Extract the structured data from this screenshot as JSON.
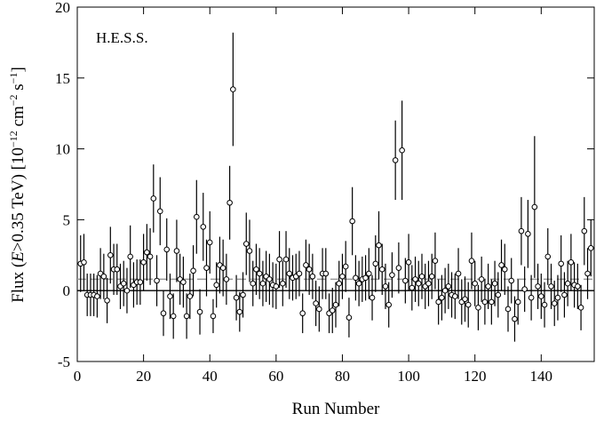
{
  "chart_data": {
    "type": "scatter",
    "annotation": "H.E.S.S.",
    "xlabel": "Run Number",
    "ylabel": [
      "Flux (",
      "E",
      ">0.35 TeV) [10",
      "−12",
      " cm",
      "−2",
      " s",
      "−1",
      "]"
    ],
    "xlim": [
      0,
      156
    ],
    "ylim": [
      -5,
      20
    ],
    "xticks": [
      0,
      20,
      40,
      60,
      80,
      100,
      120,
      140
    ],
    "yticks": [
      -5,
      0,
      5,
      10,
      15,
      20
    ],
    "zero_line": 0,
    "mean_line": 0.8,
    "color": "#000000",
    "x": [
      1,
      2,
      3,
      4,
      5,
      6,
      7,
      8,
      9,
      10,
      11,
      12,
      13,
      14,
      15,
      16,
      17,
      18,
      19,
      20,
      21,
      22,
      23,
      24,
      25,
      26,
      27,
      28,
      29,
      30,
      31,
      32,
      33,
      34,
      35,
      36,
      37,
      38,
      39,
      40,
      41,
      42,
      43,
      44,
      45,
      46,
      47,
      48,
      49,
      50,
      51,
      52,
      53,
      54,
      55,
      56,
      57,
      58,
      59,
      60,
      61,
      62,
      63,
      64,
      65,
      66,
      67,
      68,
      69,
      70,
      71,
      72,
      73,
      74,
      75,
      76,
      77,
      78,
      79,
      80,
      81,
      82,
      83,
      84,
      85,
      86,
      87,
      88,
      89,
      90,
      91,
      92,
      93,
      94,
      95,
      96,
      97,
      98,
      99,
      100,
      101,
      102,
      103,
      104,
      105,
      106,
      107,
      108,
      109,
      110,
      111,
      112,
      113,
      114,
      115,
      116,
      117,
      118,
      119,
      120,
      121,
      122,
      123,
      124,
      125,
      126,
      127,
      128,
      129,
      130,
      131,
      132,
      133,
      134,
      135,
      136,
      137,
      138,
      139,
      140,
      141,
      142,
      143,
      144,
      145,
      146,
      147,
      148,
      149,
      150,
      151,
      152,
      153,
      154,
      155
    ],
    "values": [
      1.9,
      2.0,
      -0.3,
      -0.3,
      -0.3,
      -0.4,
      1.2,
      1.0,
      -0.7,
      2.5,
      1.5,
      1.5,
      0.3,
      0.5,
      0.0,
      2.4,
      0.4,
      0.6,
      0.6,
      2.0,
      2.7,
      2.4,
      6.5,
      0.7,
      5.6,
      -1.6,
      2.9,
      -0.4,
      -1.8,
      2.8,
      0.8,
      0.6,
      -1.8,
      -0.4,
      1.4,
      5.2,
      -1.5,
      4.5,
      1.6,
      3.4,
      -1.8,
      0.4,
      1.8,
      1.6,
      0.8,
      6.2,
      14.2,
      -0.5,
      -1.5,
      -0.3,
      3.3,
      2.8,
      0.5,
      1.5,
      1.2,
      0.5,
      1.0,
      0.8,
      0.4,
      0.3,
      2.2,
      0.5,
      2.2,
      1.2,
      0.9,
      1.0,
      1.2,
      -1.6,
      1.8,
      1.5,
      1.0,
      -0.9,
      -1.3,
      1.2,
      1.2,
      -1.6,
      -1.4,
      -1.0,
      0.5,
      1.0,
      1.7,
      -1.9,
      4.9,
      0.9,
      0.5,
      0.8,
      0.9,
      1.2,
      -0.5,
      1.9,
      3.2,
      1.5,
      0.3,
      -1.0,
      1.1,
      9.2,
      1.6,
      9.9,
      0.7,
      2.0,
      0.2,
      0.8,
      0.5,
      1.0,
      0.3,
      0.5,
      1.0,
      2.1,
      -0.8,
      -0.5,
      0.0,
      0.3,
      -0.3,
      -0.4,
      1.2,
      -0.8,
      -0.6,
      -1.0,
      2.1,
      0.5,
      -1.2,
      0.8,
      -0.8,
      0.3,
      -0.8,
      0.5,
      -0.3,
      1.8,
      1.5,
      -1.3,
      0.7,
      -2.0,
      -0.8,
      4.2,
      0.1,
      4.0,
      -0.5,
      5.9,
      0.3,
      -0.4,
      -1.0,
      2.4,
      0.3,
      -0.9,
      -0.5,
      1.9,
      -0.3,
      0.5,
      2.0,
      0.4,
      0.3,
      -1.2,
      4.2,
      1.2,
      3.0
    ],
    "errors": [
      2.0,
      2.0,
      1.5,
      1.5,
      1.5,
      1.5,
      1.8,
      1.6,
      1.6,
      2.0,
      1.8,
      1.8,
      1.6,
      1.6,
      1.6,
      2.2,
      1.6,
      1.6,
      1.6,
      2.0,
      2.0,
      2.0,
      2.4,
      1.8,
      2.4,
      1.6,
      2.2,
      1.6,
      1.6,
      2.2,
      1.8,
      1.8,
      1.6,
      1.6,
      1.8,
      2.6,
      1.6,
      2.4,
      2.0,
      2.2,
      1.2,
      1.6,
      2.0,
      2.0,
      1.8,
      2.6,
      4.0,
      1.6,
      1.4,
      1.6,
      2.2,
      2.2,
      1.6,
      1.8,
      1.8,
      1.6,
      1.8,
      1.8,
      1.6,
      1.6,
      2.0,
      1.6,
      2.0,
      1.8,
      1.6,
      1.6,
      1.6,
      1.4,
      1.8,
      1.8,
      1.6,
      1.6,
      1.6,
      1.8,
      1.8,
      1.4,
      1.6,
      1.6,
      1.6,
      1.6,
      1.8,
      1.4,
      2.4,
      1.6,
      1.6,
      1.6,
      1.6,
      1.8,
      1.6,
      2.0,
      2.4,
      1.8,
      1.6,
      1.6,
      1.6,
      2.8,
      1.8,
      3.5,
      1.6,
      2.0,
      1.6,
      1.6,
      1.6,
      1.6,
      1.6,
      1.6,
      1.6,
      2.0,
      1.6,
      1.6,
      1.6,
      1.6,
      1.6,
      1.6,
      1.8,
      1.6,
      1.6,
      1.6,
      2.0,
      1.6,
      1.6,
      1.6,
      1.6,
      1.6,
      1.6,
      1.6,
      1.6,
      1.8,
      1.8,
      1.6,
      1.6,
      1.6,
      1.6,
      2.4,
      1.6,
      2.4,
      1.6,
      5.0,
      1.6,
      1.6,
      1.6,
      2.0,
      1.6,
      1.6,
      1.6,
      2.0,
      1.6,
      1.6,
      2.0,
      1.6,
      1.6,
      1.6,
      2.4,
      1.8,
      2.0
    ]
  }
}
